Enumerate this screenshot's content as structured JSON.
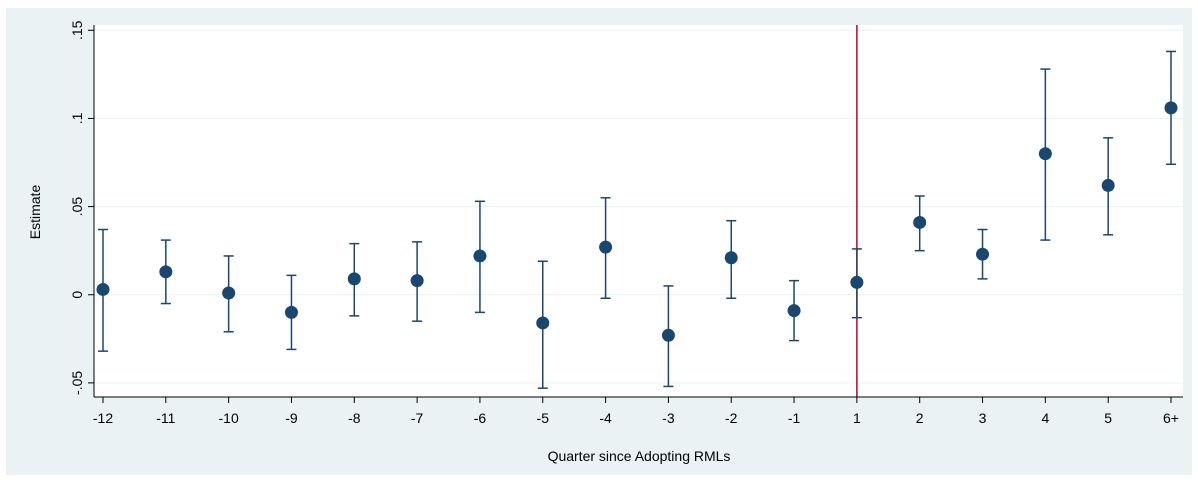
{
  "chart_data": {
    "type": "scatter",
    "subtype": "coefficient plot with confidence intervals",
    "xlabel": "Quarter since Adopting RMLs",
    "ylabel": "Estimate",
    "categories": [
      "-12",
      "-11",
      "-10",
      "-9",
      "-8",
      "-7",
      "-6",
      "-5",
      "-4",
      "-3",
      "-2",
      "-1",
      "1",
      "2",
      "3",
      "4",
      "5",
      "6+"
    ],
    "estimates": [
      0.003,
      0.013,
      0.001,
      -0.01,
      0.009,
      0.008,
      0.022,
      -0.016,
      0.027,
      -0.023,
      0.021,
      -0.009,
      0.007,
      0.041,
      0.023,
      0.08,
      0.062,
      0.106
    ],
    "ci_lower": [
      -0.032,
      -0.005,
      -0.021,
      -0.031,
      -0.012,
      -0.015,
      -0.01,
      -0.053,
      -0.002,
      -0.052,
      -0.002,
      -0.026,
      -0.013,
      0.025,
      0.009,
      0.031,
      0.034,
      0.074
    ],
    "ci_upper": [
      0.037,
      0.031,
      0.022,
      0.011,
      0.029,
      0.03,
      0.053,
      0.019,
      0.055,
      0.005,
      0.042,
      0.008,
      0.026,
      0.056,
      0.037,
      0.128,
      0.089,
      0.138
    ],
    "yticks": [
      -0.05,
      0,
      0.05,
      0.1,
      0.15
    ],
    "ytick_labels": [
      "-.05",
      "0",
      ".05",
      ".1",
      ".15"
    ],
    "ylim": [
      -0.058,
      0.153
    ],
    "vertical_reference_at": "1",
    "grid": true,
    "colors": {
      "marker": "#1a476f",
      "ci": "#1a476f",
      "reference_line": "#c1002a",
      "grid": "#eaf2f3",
      "plot_bg": "#ffffff",
      "outer_bg": "#eaf2f3"
    }
  }
}
